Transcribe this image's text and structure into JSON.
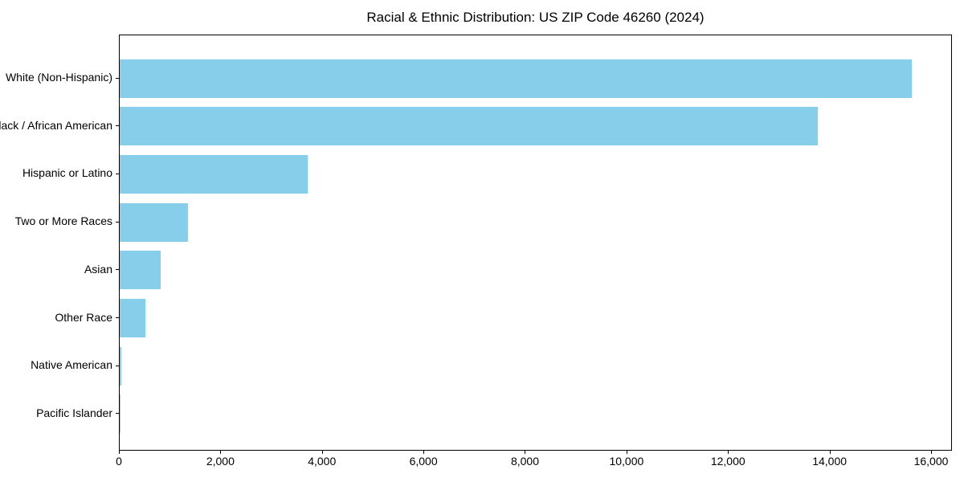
{
  "chart_data": {
    "type": "bar",
    "orientation": "horizontal",
    "title": "Racial & Ethnic Distribution: US ZIP Code 46260 (2024)",
    "categories": [
      "White (Non-Hispanic)",
      "Black / African American",
      "Hispanic or Latino",
      "Two or More Races",
      "Asian",
      "Other Race",
      "Native American",
      "Pacific Islander"
    ],
    "values": [
      15600,
      13750,
      3700,
      1340,
      800,
      500,
      30,
      10
    ],
    "xlabel": "",
    "ylabel": "",
    "xlim": [
      0,
      16380
    ],
    "x_tick_values": [
      0,
      2000,
      4000,
      6000,
      8000,
      10000,
      12000,
      14000,
      16000
    ],
    "x_tick_labels": [
      "0",
      "2,000",
      "4,000",
      "6,000",
      "8,000",
      "10,000",
      "12,000",
      "14,000",
      "16,000"
    ],
    "bar_color": "#87CEEB",
    "spine_color": "#000000",
    "background_color": "#ffffff",
    "grid": false,
    "legend": "none"
  }
}
